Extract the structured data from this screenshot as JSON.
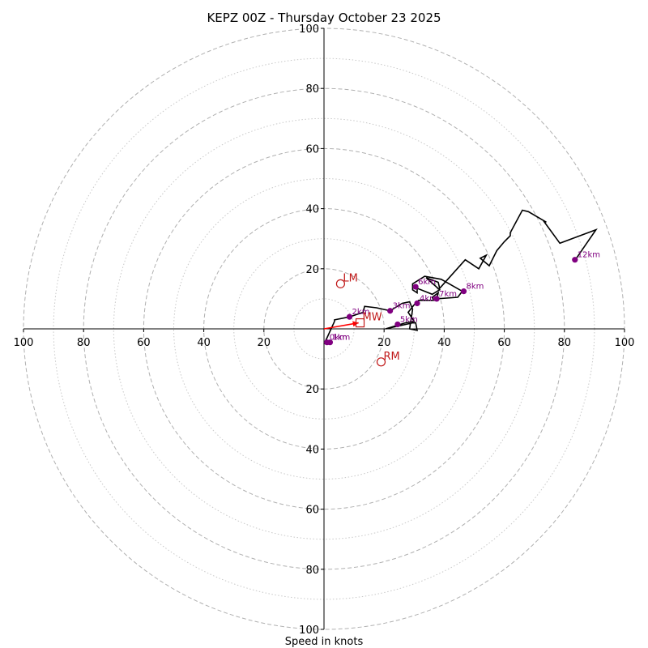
{
  "chart_data": {
    "type": "line",
    "subtype": "hodograph",
    "title": "KEPZ 00Z - Thursday October 23 2025",
    "xlabel": "Speed in knots",
    "ylabel": "",
    "units": "knots",
    "max_speed": 100,
    "rings_major": [
      20,
      40,
      60,
      80,
      100
    ],
    "rings_minor": [
      10,
      30,
      50,
      70,
      90
    ],
    "tick_labels": [
      "100",
      "80",
      "60",
      "40",
      "20",
      "20",
      "40",
      "60",
      "80",
      "100"
    ],
    "axis_ticks_y": [
      "100",
      "80",
      "60",
      "40",
      "20",
      "20",
      "40",
      "60",
      "80",
      "100"
    ],
    "grid": true,
    "colors": {
      "trace": "#000000",
      "height_marker": "#800080",
      "storm_motion": "#c01818",
      "shear_vector": "#ff0000",
      "grid": "#b0b0b0"
    },
    "trace": {
      "u": [
        0.0,
        1.0,
        3.5,
        3.5,
        8.5,
        13.0,
        13.5,
        17.5,
        22.0,
        26.0,
        28.5,
        29.5,
        28.5,
        31.0,
        30.5,
        29.5,
        20.5,
        27.0,
        30.0,
        28.0,
        30.0,
        31.5,
        36.5,
        36.0,
        38.0,
        37.5,
        44.5,
        46.0,
        39.0,
        33.5,
        29.5,
        29.5,
        31.0,
        31.0,
        36.0,
        38.5,
        34.0,
        38.0,
        38.5,
        47.0,
        51.5,
        54.0,
        52.0,
        55.0,
        57.5,
        60.0,
        62.0,
        62.0,
        66.0,
        68.0,
        74.0,
        73.0,
        78.5,
        90.5,
        84.0,
        83.5
      ],
      "v": [
        -5.0,
        -3.0,
        2.5,
        3.0,
        4.0,
        5.5,
        7.5,
        7.0,
        6.0,
        8.5,
        9.0,
        6.5,
        0.0,
        -0.5,
        2.0,
        2.0,
        0.0,
        2.0,
        2.5,
        5.5,
        8.0,
        9.5,
        9.5,
        10.5,
        12.0,
        10.0,
        10.5,
        12.5,
        16.5,
        17.5,
        15.0,
        13.0,
        12.0,
        13.5,
        11.5,
        13.0,
        17.0,
        15.5,
        13.5,
        23.0,
        20.0,
        24.5,
        23.5,
        21.0,
        26.0,
        29.0,
        31.0,
        32.0,
        39.5,
        39.0,
        35.5,
        36.0,
        28.5,
        33.0,
        23.5,
        23.0
      ]
    },
    "height_markers": [
      {
        "label": "0km",
        "u": 1.0,
        "v": -4.5
      },
      {
        "label": "1km",
        "u": 2.0,
        "v": -4.5
      },
      {
        "label": "2km",
        "u": 8.5,
        "v": 4.0
      },
      {
        "label": "3km",
        "u": 22.0,
        "v": 6.0
      },
      {
        "label": "4km",
        "u": 31.0,
        "v": 8.5
      },
      {
        "label": "5km",
        "u": 24.5,
        "v": 1.5
      },
      {
        "label": "6km",
        "u": 30.5,
        "v": 14.0
      },
      {
        "label": "7km",
        "u": 37.5,
        "v": 10.0
      },
      {
        "label": "8km",
        "u": 46.5,
        "v": 12.5
      },
      {
        "label": "12km",
        "u": 83.5,
        "v": 23.0
      }
    ],
    "storm_motions": [
      {
        "label": "LM",
        "u": 5.5,
        "v": 15.0,
        "marker": "circle"
      },
      {
        "label": "RM",
        "u": 19.0,
        "v": -11.0,
        "marker": "circle"
      },
      {
        "label": "MW",
        "u": 12.0,
        "v": 2.0,
        "marker": "square"
      }
    ],
    "shear_vector": {
      "from_u": 0.0,
      "from_v": 0.0,
      "to_u": 11.5,
      "to_v": 2.0
    }
  }
}
